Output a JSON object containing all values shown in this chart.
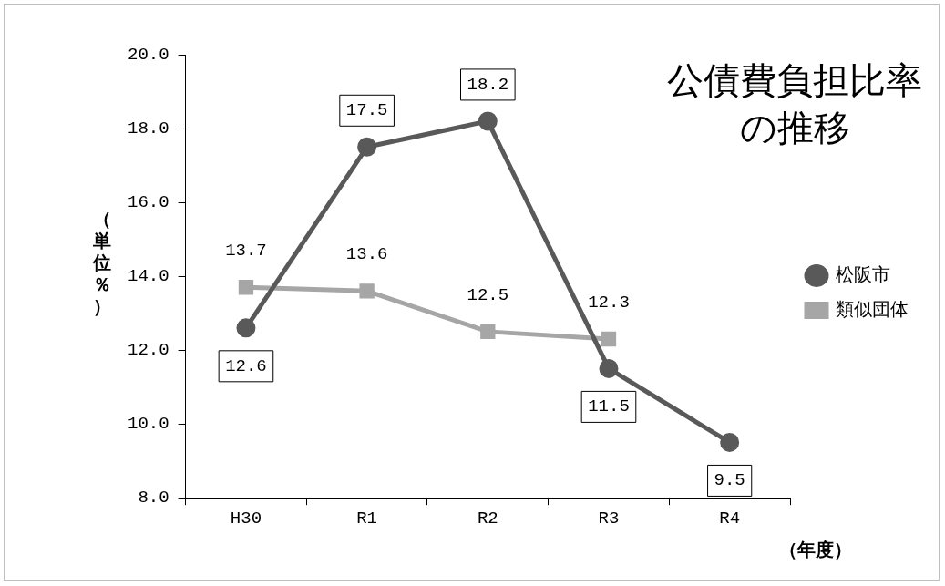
{
  "chart_data": {
    "type": "line",
    "title": "公債費負担比率の推移",
    "ylabel": "（単位％）",
    "xlabel": "（年度）",
    "categories": [
      "H30",
      "R1",
      "R2",
      "R3",
      "R4"
    ],
    "series": [
      {
        "name": "松阪市",
        "color": "#595959",
        "marker": "circle",
        "values": [
          12.6,
          17.5,
          18.2,
          11.5,
          9.5
        ]
      },
      {
        "name": "類似団体",
        "color": "#a6a6a6",
        "marker": "square",
        "values": [
          13.7,
          13.6,
          12.5,
          12.3,
          null
        ]
      }
    ],
    "ylim": [
      8,
      20
    ],
    "yticks": [
      {
        "value": 8,
        "label": "8.0"
      },
      {
        "value": 10,
        "label": "10.0"
      },
      {
        "value": 12,
        "label": "12.0"
      },
      {
        "value": 14,
        "label": "14.0"
      },
      {
        "value": 16,
        "label": "16.0"
      },
      {
        "value": 18,
        "label": "18.0"
      },
      {
        "value": 20,
        "label": "20.0"
      }
    ],
    "legend": "right",
    "data_labels": true
  }
}
